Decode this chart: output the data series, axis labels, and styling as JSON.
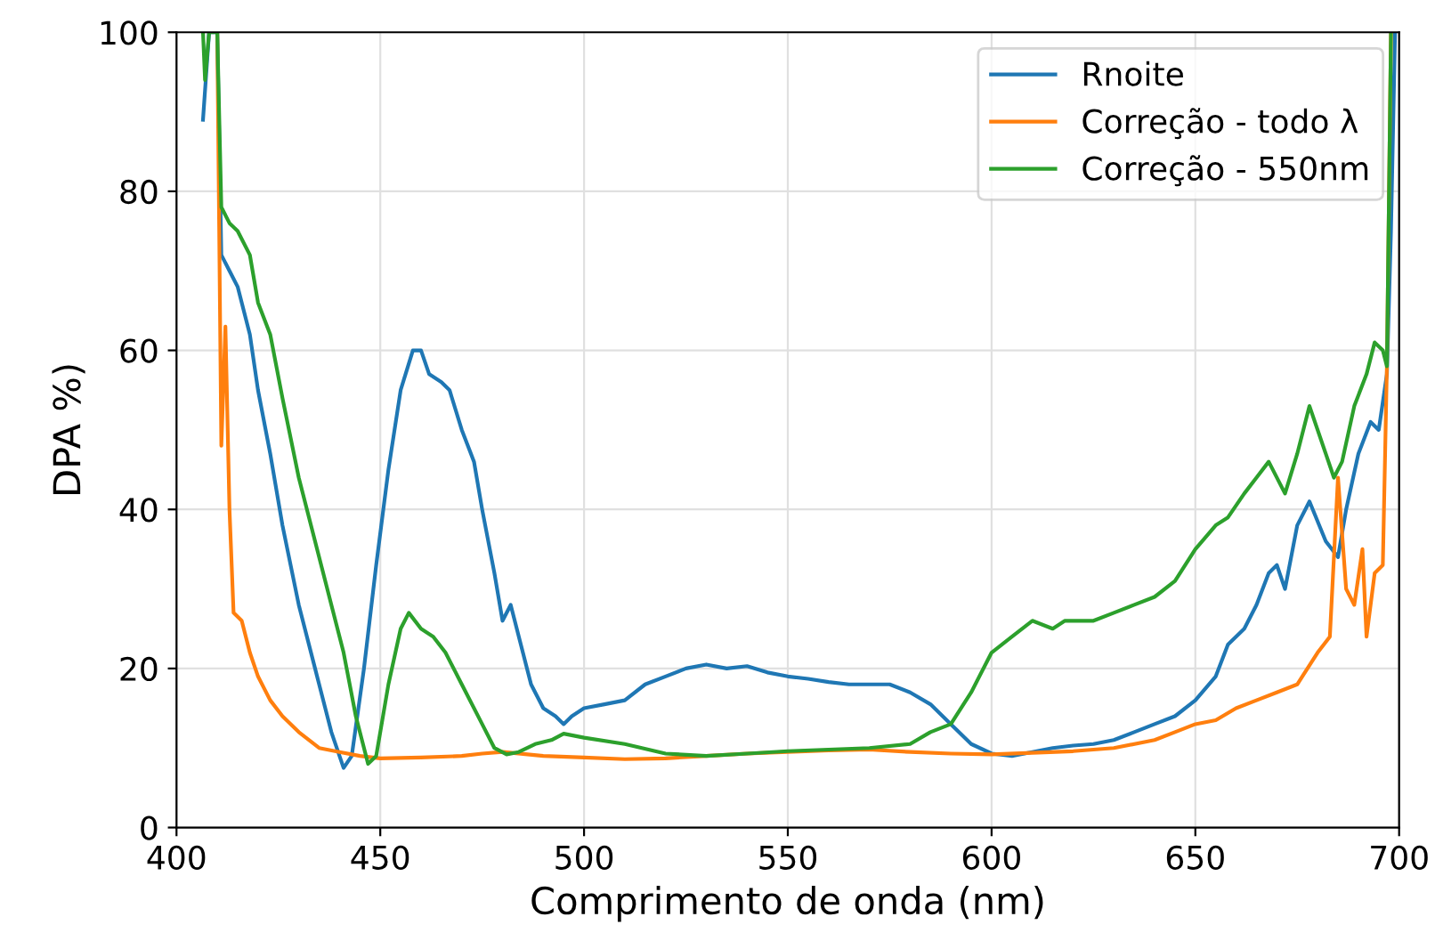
{
  "chart_data": {
    "type": "line",
    "xlabel": "Comprimento de onda (nm)",
    "ylabel": "DPA %)",
    "xlim": [
      400,
      700
    ],
    "ylim": [
      0,
      100
    ],
    "xticks": [
      400,
      450,
      500,
      550,
      600,
      650,
      700
    ],
    "yticks": [
      0,
      20,
      40,
      60,
      80,
      100
    ],
    "grid": true,
    "legend": "top right",
    "series": [
      {
        "name": "Rnoite",
        "color": "#1f77b4",
        "x": [
          406.5,
          408,
          410,
          411,
          413,
          415,
          418,
          420,
          423,
          426,
          430,
          434,
          438,
          441,
          443,
          446,
          449,
          452,
          455,
          458,
          460,
          462,
          465,
          467,
          470,
          473,
          475,
          478,
          480,
          482,
          484,
          487,
          490,
          493,
          495,
          497,
          500,
          505,
          510,
          515,
          520,
          525,
          530,
          535,
          540,
          545,
          550,
          555,
          560,
          565,
          570,
          575,
          580,
          585,
          590,
          595,
          600,
          605,
          610,
          615,
          620,
          625,
          630,
          635,
          640,
          645,
          650,
          655,
          658,
          662,
          665,
          668,
          670,
          672,
          675,
          678,
          682,
          685,
          687,
          690,
          693,
          695,
          697,
          698,
          699
        ],
        "values": [
          89,
          100,
          100,
          72,
          70,
          68,
          62,
          55,
          47,
          38,
          28,
          20,
          12,
          7.5,
          9,
          20,
          33,
          45,
          55,
          60,
          60,
          57,
          56,
          55,
          50,
          46,
          40,
          32,
          26,
          28,
          24,
          18,
          15,
          14,
          13,
          14,
          15,
          15.5,
          16,
          18,
          19,
          20,
          20.5,
          20,
          20.3,
          19.5,
          19,
          18.7,
          18.3,
          18,
          18,
          18,
          17,
          15.5,
          13,
          10.5,
          9.3,
          9,
          9.5,
          10,
          10.3,
          10.5,
          11,
          12,
          13,
          14,
          16,
          19,
          23,
          25,
          28,
          32,
          33,
          30,
          38,
          41,
          36,
          34,
          40,
          47,
          51,
          50,
          57,
          75,
          100
        ]
      },
      {
        "name": "Correção - todo λ",
        "color": "#ff7f0e",
        "x": [
          410,
          411,
          412,
          413,
          414,
          416,
          418,
          420,
          423,
          426,
          430,
          435,
          440,
          445,
          450,
          460,
          470,
          475,
          480,
          490,
          500,
          510,
          520,
          530,
          540,
          550,
          560,
          570,
          580,
          590,
          600,
          610,
          620,
          630,
          640,
          645,
          650,
          655,
          660,
          665,
          670,
          675,
          680,
          683,
          685,
          687,
          689,
          691,
          692,
          694,
          696,
          697,
          698
        ],
        "values": [
          100,
          48,
          63,
          40,
          27,
          26,
          22,
          19,
          16,
          14,
          12,
          10,
          9.5,
          9,
          8.7,
          8.8,
          9,
          9.3,
          9.5,
          9,
          8.8,
          8.6,
          8.7,
          9,
          9.3,
          9.5,
          9.7,
          9.8,
          9.5,
          9.3,
          9.2,
          9.4,
          9.6,
          10,
          11,
          12,
          13,
          13.5,
          15,
          16,
          17,
          18,
          22,
          24,
          44,
          30,
          28,
          35,
          24,
          32,
          33,
          58,
          100
        ]
      },
      {
        "name": "Correção - 550nm",
        "color": "#2ca02c",
        "x": [
          406.5,
          407,
          408,
          410,
          411,
          413,
          415,
          418,
          420,
          423,
          426,
          430,
          434,
          438,
          441,
          444,
          447,
          449,
          452,
          455,
          457,
          460,
          463,
          466,
          470,
          475,
          478,
          481,
          484,
          488,
          492,
          495,
          500,
          510,
          520,
          530,
          540,
          550,
          560,
          570,
          580,
          585,
          590,
          595,
          600,
          605,
          610,
          615,
          618,
          625,
          630,
          635,
          640,
          645,
          650,
          655,
          658,
          662,
          665,
          668,
          672,
          675,
          678,
          682,
          684,
          686,
          689,
          692,
          694,
          696,
          697,
          698
        ],
        "values": [
          100,
          94,
          100,
          100,
          78,
          76,
          75,
          72,
          66,
          62,
          54,
          44,
          36,
          28,
          22,
          14,
          8,
          9,
          18,
          25,
          27,
          25,
          24,
          22,
          18,
          13,
          10,
          9.2,
          9.5,
          10.5,
          11,
          11.8,
          11.3,
          10.5,
          9.3,
          9,
          9.3,
          9.6,
          9.8,
          10,
          10.5,
          12,
          13,
          17,
          22,
          24,
          26,
          25,
          26,
          26,
          27,
          28,
          29,
          31,
          35,
          38,
          39,
          42,
          44,
          46,
          42,
          47,
          53,
          47,
          44,
          46,
          53,
          57,
          61,
          60,
          58,
          100
        ]
      }
    ]
  }
}
